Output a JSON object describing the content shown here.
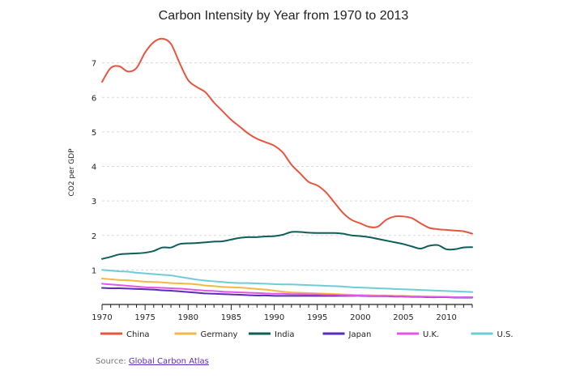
{
  "chart_data": {
    "type": "line",
    "title": "Carbon Intensity by Year from 1970 to 2013",
    "xlabel": "",
    "ylabel": "CO2 per GDP",
    "xlim": [
      1970,
      2013
    ],
    "ylim": [
      0,
      8
    ],
    "xticks": [
      "1970",
      "1975",
      "1980",
      "1985",
      "1990",
      "1995",
      "2000",
      "2005",
      "2010"
    ],
    "yticks": [
      "1",
      "2",
      "3",
      "4",
      "5",
      "6",
      "7"
    ],
    "grid": "horizontal dashed",
    "legend": "bottom",
    "x": [
      1970,
      1971,
      1972,
      1973,
      1974,
      1975,
      1976,
      1977,
      1978,
      1979,
      1980,
      1981,
      1982,
      1983,
      1984,
      1985,
      1986,
      1987,
      1988,
      1989,
      1990,
      1991,
      1992,
      1993,
      1994,
      1995,
      1996,
      1997,
      1998,
      1999,
      2000,
      2001,
      2002,
      2003,
      2004,
      2005,
      2006,
      2007,
      2008,
      2009,
      2010,
      2011,
      2012,
      2013
    ],
    "series": [
      {
        "name": "China",
        "color": "#e8553e",
        "values": [
          6.45,
          6.85,
          6.9,
          6.75,
          6.85,
          7.3,
          7.6,
          7.7,
          7.55,
          7.0,
          6.5,
          6.3,
          6.15,
          5.85,
          5.6,
          5.35,
          5.15,
          4.95,
          4.8,
          4.7,
          4.6,
          4.4,
          4.05,
          3.8,
          3.55,
          3.45,
          3.25,
          2.95,
          2.65,
          2.45,
          2.35,
          2.25,
          2.25,
          2.45,
          2.55,
          2.55,
          2.5,
          2.35,
          2.22,
          2.18,
          2.16,
          2.14,
          2.12,
          2.05
        ]
      },
      {
        "name": "Germany",
        "color": "#f0b944",
        "values": [
          0.75,
          0.73,
          0.71,
          0.7,
          0.68,
          0.66,
          0.65,
          0.64,
          0.62,
          0.61,
          0.6,
          0.58,
          0.55,
          0.53,
          0.51,
          0.5,
          0.49,
          0.47,
          0.45,
          0.43,
          0.4,
          0.37,
          0.35,
          0.34,
          0.33,
          0.32,
          0.31,
          0.3,
          0.29,
          0.28,
          0.27,
          0.27,
          0.26,
          0.26,
          0.25,
          0.25,
          0.24,
          0.23,
          0.23,
          0.22,
          0.22,
          0.21,
          0.21,
          0.21
        ]
      },
      {
        "name": "India",
        "color": "#0e5e5a",
        "values": [
          1.32,
          1.38,
          1.45,
          1.47,
          1.48,
          1.5,
          1.55,
          1.65,
          1.65,
          1.75,
          1.77,
          1.78,
          1.8,
          1.82,
          1.83,
          1.88,
          1.93,
          1.95,
          1.95,
          1.97,
          1.98,
          2.02,
          2.1,
          2.1,
          2.08,
          2.07,
          2.07,
          2.07,
          2.05,
          2.0,
          1.98,
          1.95,
          1.9,
          1.85,
          1.8,
          1.75,
          1.68,
          1.62,
          1.7,
          1.72,
          1.6,
          1.6,
          1.65,
          1.66
        ]
      },
      {
        "name": "Japan",
        "color": "#5a2bb5",
        "values": [
          0.48,
          0.47,
          0.47,
          0.46,
          0.45,
          0.44,
          0.43,
          0.41,
          0.4,
          0.38,
          0.36,
          0.34,
          0.32,
          0.31,
          0.3,
          0.29,
          0.28,
          0.27,
          0.26,
          0.26,
          0.25,
          0.25,
          0.25,
          0.25,
          0.25,
          0.25,
          0.25,
          0.25,
          0.25,
          0.25,
          0.25,
          0.24,
          0.24,
          0.24,
          0.23,
          0.23,
          0.22,
          0.22,
          0.21,
          0.21,
          0.21,
          0.2,
          0.2,
          0.2
        ]
      },
      {
        "name": "U.K.",
        "color": "#e356e8",
        "values": [
          0.6,
          0.58,
          0.56,
          0.54,
          0.52,
          0.5,
          0.49,
          0.48,
          0.47,
          0.46,
          0.44,
          0.42,
          0.4,
          0.39,
          0.37,
          0.36,
          0.35,
          0.34,
          0.33,
          0.32,
          0.31,
          0.31,
          0.3,
          0.3,
          0.29,
          0.29,
          0.28,
          0.28,
          0.27,
          0.26,
          0.26,
          0.25,
          0.25,
          0.25,
          0.24,
          0.24,
          0.23,
          0.23,
          0.22,
          0.22,
          0.22,
          0.21,
          0.21,
          0.21
        ]
      },
      {
        "name": "U.S.",
        "color": "#6dcdd7",
        "values": [
          1.0,
          0.98,
          0.96,
          0.95,
          0.92,
          0.9,
          0.88,
          0.86,
          0.84,
          0.8,
          0.76,
          0.72,
          0.69,
          0.67,
          0.65,
          0.63,
          0.62,
          0.62,
          0.61,
          0.6,
          0.59,
          0.58,
          0.58,
          0.57,
          0.56,
          0.55,
          0.54,
          0.53,
          0.52,
          0.5,
          0.49,
          0.48,
          0.47,
          0.46,
          0.45,
          0.44,
          0.43,
          0.42,
          0.41,
          0.4,
          0.39,
          0.38,
          0.37,
          0.36
        ]
      }
    ]
  },
  "source": {
    "prefix": "Source: ",
    "link_text": "Global Carbon Atlas"
  }
}
